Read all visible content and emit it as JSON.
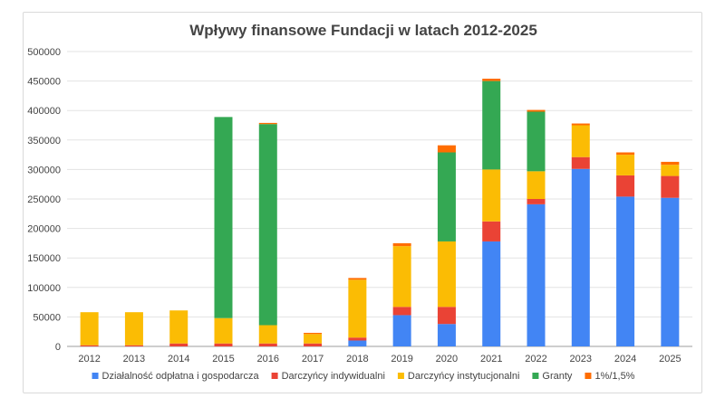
{
  "chart_data": {
    "type": "bar",
    "stacked": true,
    "title": "Wpływy finansowe Fundacji w latach 2012-2025",
    "xlabel": "",
    "ylabel": "",
    "categories": [
      "2012",
      "2013",
      "2014",
      "2015",
      "2016",
      "2017",
      "2018",
      "2019",
      "2020",
      "2021",
      "2022",
      "2023",
      "2024",
      "2025"
    ],
    "ylim": [
      0,
      500000
    ],
    "yticks": [
      "0",
      "50000",
      "100000",
      "150000",
      "200000",
      "250000",
      "300000",
      "350000",
      "400000",
      "450000",
      "500000"
    ],
    "grid": true,
    "legend_position": "bottom",
    "series": [
      {
        "name": "Działalność odpłatna i gospodarcza",
        "color": "#4285F4",
        "values": [
          0,
          0,
          0,
          0,
          0,
          0,
          10000,
          53000,
          38000,
          178000,
          241000,
          301000,
          254000,
          252000
        ]
      },
      {
        "name": "Darczyńcy indywidualni",
        "color": "#EA4335",
        "values": [
          2000,
          2000,
          5000,
          5000,
          5000,
          5000,
          5000,
          14000,
          29000,
          34000,
          9000,
          20000,
          36000,
          37000
        ]
      },
      {
        "name": "Darczyńcy instytucjonalni",
        "color": "#FBBC04",
        "values": [
          56000,
          56000,
          56000,
          43000,
          31000,
          16000,
          98000,
          103000,
          111000,
          88000,
          47000,
          54000,
          35000,
          19000
        ]
      },
      {
        "name": "Granty",
        "color": "#34A853",
        "values": [
          0,
          0,
          0,
          341000,
          341000,
          0,
          0,
          0,
          151000,
          150000,
          101000,
          0,
          0,
          0
        ]
      },
      {
        "name": "1%/1,5%",
        "color": "#FF6D01",
        "values": [
          0,
          0,
          0,
          0,
          2000,
          2000,
          3000,
          5000,
          12000,
          4000,
          3000,
          3000,
          4000,
          5000
        ]
      }
    ]
  }
}
